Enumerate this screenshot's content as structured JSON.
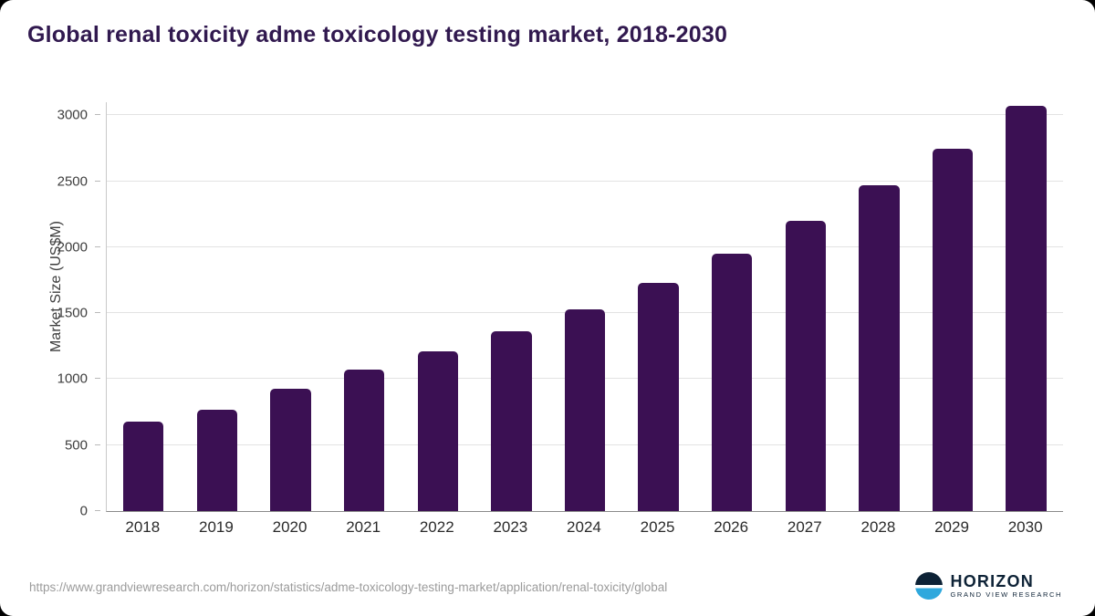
{
  "title": "Global renal toxicity adme toxicology testing market, 2018-2030",
  "source_url": "https://www.grandviewresearch.com/horizon/statistics/adme-toxicology-testing-market/application/renal-toxicity/global",
  "logo": {
    "name": "HORIZON",
    "subtitle": "GRAND VIEW RESEARCH"
  },
  "colors": {
    "bar": "#3b1053",
    "title": "#31194f",
    "gridline": "#e3e3e3",
    "axis_text": "#3d3d3d",
    "source_text": "#9b9b9b",
    "logo_navy": "#0d2236",
    "logo_blue": "#2fa8dd"
  },
  "chart_data": {
    "type": "bar",
    "categories": [
      "2018",
      "2019",
      "2020",
      "2021",
      "2022",
      "2023",
      "2024",
      "2025",
      "2026",
      "2027",
      "2028",
      "2029",
      "2030"
    ],
    "values": [
      680,
      765,
      925,
      1070,
      1210,
      1360,
      1530,
      1730,
      1950,
      2200,
      2470,
      2750,
      3070
    ],
    "title": "Global renal toxicity adme toxicology testing market, 2018-2030",
    "xlabel": "",
    "ylabel": "Market Size (US$M)",
    "ylim": [
      0,
      3100
    ],
    "yticks": [
      0,
      500,
      1000,
      1500,
      2000,
      2500,
      3000
    ],
    "grid": true,
    "legend": "none",
    "bar_color": "#3b1053"
  }
}
